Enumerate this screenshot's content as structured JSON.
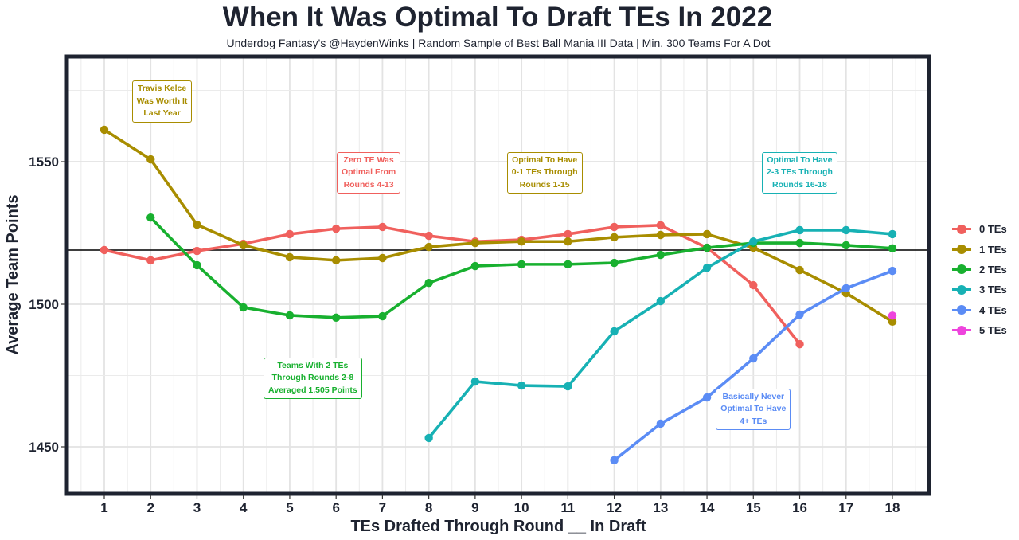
{
  "chart_data": {
    "type": "line",
    "title": "When It Was Optimal To Draft TEs In 2022",
    "subtitle": "Underdog Fantasy's @HaydenWinks | Random Sample of Best Ball Mania III Data | Min. 300 Teams For A Dot",
    "xlabel": "TEs Drafted Through Round __ In Draft",
    "ylabel": "Average Team Points",
    "x": [
      1,
      2,
      3,
      4,
      5,
      6,
      7,
      8,
      9,
      10,
      11,
      12,
      13,
      14,
      15,
      16,
      17,
      18
    ],
    "x_tick_labels": [
      "1",
      "2",
      "3",
      "4",
      "5",
      "6",
      "7",
      "8",
      "9",
      "10",
      "11",
      "12",
      "13",
      "14",
      "15",
      "16",
      "17",
      "18"
    ],
    "xlim": [
      0.3,
      18.7
    ],
    "ylim": [
      1434,
      1585
    ],
    "y_ticks": [
      1450,
      1500,
      1550
    ],
    "y_tick_labels": [
      "1450",
      "1500",
      "1550"
    ],
    "reference_line": 1519,
    "grid": true,
    "legend_position": "right",
    "series": [
      {
        "name": "0 TEs",
        "color": "#f0605d",
        "x": [
          1,
          2,
          3,
          4,
          5,
          6,
          7,
          8,
          9,
          10,
          11,
          12,
          13,
          14,
          15,
          16
        ],
        "values": [
          1519,
          1515.4,
          1518.7,
          1521.2,
          1524.6,
          1526.5,
          1527.1,
          1524,
          1522,
          1522.6,
          1524.6,
          1527.1,
          1527.7,
          1519.8,
          1506.7,
          1486
        ]
      },
      {
        "name": "1 TEs",
        "color": "#a88d00",
        "x": [
          1,
          2,
          3,
          4,
          5,
          6,
          7,
          8,
          9,
          10,
          11,
          12,
          13,
          14,
          15,
          16,
          17,
          18
        ],
        "values": [
          1561.2,
          1550.8,
          1527.9,
          1520.7,
          1516.5,
          1515.4,
          1516.2,
          1520.1,
          1521.5,
          1522,
          1522,
          1523.5,
          1524.3,
          1524.6,
          1519.8,
          1512,
          1503.9,
          1493.9
        ]
      },
      {
        "name": "2 TEs",
        "color": "#18b02f",
        "x": [
          2,
          3,
          4,
          5,
          6,
          7,
          8,
          9,
          10,
          11,
          12,
          13,
          14,
          15,
          16,
          17,
          18
        ],
        "values": [
          1530.4,
          1513.7,
          1498.9,
          1496.1,
          1495.3,
          1495.8,
          1507.5,
          1513.4,
          1514,
          1514,
          1514.5,
          1517.3,
          1519.8,
          1521.5,
          1521.5,
          1520.7,
          1519.6
        ]
      },
      {
        "name": "3 TEs",
        "color": "#17b1b4",
        "x": [
          8,
          9,
          10,
          11,
          12,
          13,
          14,
          15,
          16,
          17,
          18
        ],
        "values": [
          1453.1,
          1472.9,
          1471.5,
          1471.2,
          1490.5,
          1501.1,
          1512.8,
          1522,
          1526,
          1526,
          1524.6
        ]
      },
      {
        "name": "4 TEs",
        "color": "#5b8cf5",
        "x": [
          12,
          13,
          14,
          15,
          16,
          17,
          18
        ],
        "values": [
          1445.3,
          1458.1,
          1467.3,
          1481,
          1496.4,
          1505.6,
          1511.7
        ]
      },
      {
        "name": "5 TEs",
        "color": "#ee44dd",
        "x": [
          18
        ],
        "values": [
          1496
        ]
      }
    ],
    "annotations": [
      {
        "text": "Travis Kelce\nWas Worth It\nLast Year",
        "color": "#a88d00",
        "x": 2.25,
        "y": 1571
      },
      {
        "text": "Zero TE Was\nOptimal From\nRounds 4-13",
        "color": "#f0605d",
        "x": 6.7,
        "y": 1546
      },
      {
        "text": "Optimal To Have\n0-1 TEs Through\nRounds 1-15",
        "color": "#a88d00",
        "x": 10.5,
        "y": 1546
      },
      {
        "text": "Optimal To Have\n2-3 TEs Through\nRounds 16-18",
        "color": "#17b1b4",
        "x": 16,
        "y": 1546
      },
      {
        "text": "Teams With 2 TEs\nThrough Rounds 2-8\nAveraged 1,505 Points",
        "color": "#18b02f",
        "x": 5.5,
        "y": 1474
      },
      {
        "text": "Basically Never\nOptimal To Have\n4+ TEs",
        "color": "#5b8cf5",
        "x": 15,
        "y": 1463
      }
    ]
  }
}
